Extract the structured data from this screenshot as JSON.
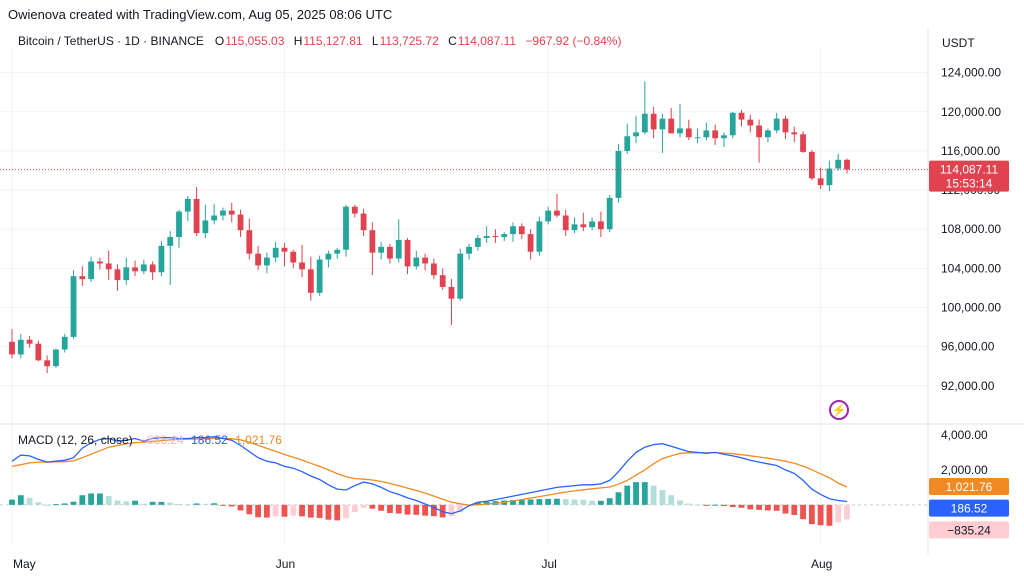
{
  "header": {
    "credit": "Owienova created with TradingView.com, Aug 05, 2025 08:06 UTC",
    "symbol": "Bitcoin / TetherUS · 1D · BINANCE",
    "ohlc": {
      "o_label": "O",
      "o": "115,055.03",
      "h_label": "H",
      "h": "115,127.81",
      "l_label": "L",
      "l": "113,725.72",
      "c_label": "C",
      "c": "114,087.11",
      "change": "−967.92 (−0.84%)"
    },
    "currency": "USDT"
  },
  "macd_legend": {
    "label": "MACD (12, 26, close)",
    "histogram": "−835.24",
    "macd": "186.52",
    "signal": "1,021.76"
  },
  "badges": {
    "last_price": "114,087.11",
    "countdown": "15:53:14",
    "signal": "1,021.76",
    "macd": "186.52",
    "histogram": "−835.24"
  },
  "colors": {
    "up": "#26a69a",
    "down": "#e0434f",
    "macd": "#2962ff",
    "signal": "#f08a24",
    "hist_up": "#26a69a",
    "hist_down": "#ef5350"
  },
  "chart_data": {
    "type": "candlestick",
    "y_ticks": [
      "92,000.00",
      "96,000.00",
      "100,000.00",
      "104,000.00",
      "108,000.00",
      "112,000.00",
      "116,000.00",
      "120,000.00",
      "124,000.00"
    ],
    "y_range": [
      88500,
      125500
    ],
    "x_labels": [
      "May",
      "Jun",
      "Jul",
      "Aug"
    ],
    "last_price": 114087.11,
    "candles": [
      [
        96500,
        97800,
        94800,
        95200
      ],
      [
        95200,
        97300,
        94800,
        96700
      ],
      [
        96700,
        97100,
        95900,
        96300
      ],
      [
        96300,
        96600,
        94500,
        94600
      ],
      [
        94600,
        95100,
        93300,
        94000
      ],
      [
        94000,
        95800,
        93800,
        95700
      ],
      [
        95700,
        97300,
        95400,
        97000
      ],
      [
        97000,
        103800,
        96800,
        103200
      ],
      [
        103200,
        104200,
        102200,
        102900
      ],
      [
        102900,
        105200,
        102600,
        104700
      ],
      [
        104700,
        105100,
        103900,
        104500
      ],
      [
        104500,
        105800,
        102800,
        103900
      ],
      [
        103900,
        104400,
        101700,
        102800
      ],
      [
        102800,
        105100,
        102300,
        104100
      ],
      [
        104100,
        104800,
        103200,
        103700
      ],
      [
        103700,
        104900,
        103400,
        104400
      ],
      [
        104400,
        104700,
        102800,
        103600
      ],
      [
        103600,
        106800,
        103200,
        106300
      ],
      [
        106300,
        107800,
        102300,
        107200
      ],
      [
        107200,
        110000,
        106100,
        109800
      ],
      [
        109800,
        111400,
        108800,
        111100
      ],
      [
        111100,
        112300,
        107300,
        107600
      ],
      [
        107600,
        110500,
        107100,
        108900
      ],
      [
        108900,
        110600,
        108500,
        109400
      ],
      [
        109400,
        110200,
        108900,
        109900
      ],
      [
        109900,
        110700,
        108700,
        109500
      ],
      [
        109500,
        110000,
        107200,
        107900
      ],
      [
        107900,
        109100,
        104900,
        105500
      ],
      [
        105500,
        106300,
        103800,
        104300
      ],
      [
        104300,
        105600,
        103500,
        105100
      ],
      [
        105100,
        106700,
        104600,
        106100
      ],
      [
        106100,
        106600,
        104200,
        105700
      ],
      [
        105700,
        105900,
        104000,
        104600
      ],
      [
        104600,
        106400,
        103100,
        103900
      ],
      [
        103900,
        105200,
        100700,
        101500
      ],
      [
        101500,
        105300,
        101200,
        104900
      ],
      [
        104900,
        105800,
        104100,
        105500
      ],
      [
        105500,
        106100,
        105000,
        105900
      ],
      [
        105900,
        110500,
        105200,
        110300
      ],
      [
        110300,
        110500,
        109200,
        109600
      ],
      [
        109600,
        110100,
        107300,
        107900
      ],
      [
        107900,
        108700,
        103300,
        105600
      ],
      [
        105600,
        106700,
        104900,
        106200
      ],
      [
        106200,
        106500,
        104500,
        105000
      ],
      [
        105000,
        109000,
        104600,
        106900
      ],
      [
        106900,
        107100,
        103400,
        104200
      ],
      [
        104200,
        105800,
        103900,
        105100
      ],
      [
        105100,
        105500,
        103800,
        104500
      ],
      [
        104500,
        105000,
        102900,
        103300
      ],
      [
        103300,
        104000,
        101800,
        102100
      ],
      [
        102100,
        102900,
        98200,
        100900
      ],
      [
        100900,
        106000,
        100700,
        105500
      ],
      [
        105500,
        106500,
        104900,
        106200
      ],
      [
        106200,
        107400,
        105800,
        107100
      ],
      [
        107100,
        108300,
        106600,
        107300
      ],
      [
        107300,
        108000,
        106600,
        107200
      ],
      [
        107200,
        107700,
        106800,
        107500
      ],
      [
        107500,
        108700,
        106700,
        108300
      ],
      [
        108300,
        108600,
        107000,
        107500
      ],
      [
        107500,
        108000,
        104900,
        105700
      ],
      [
        105700,
        109300,
        105300,
        108800
      ],
      [
        108800,
        110300,
        108500,
        109900
      ],
      [
        109900,
        111600,
        109200,
        109400
      ],
      [
        109400,
        110000,
        107300,
        107900
      ],
      [
        107900,
        109200,
        107600,
        108500
      ],
      [
        108500,
        109700,
        107800,
        108200
      ],
      [
        108200,
        109200,
        107900,
        108800
      ],
      [
        108800,
        109800,
        107200,
        108000
      ],
      [
        108000,
        111500,
        107700,
        111200
      ],
      [
        111200,
        116700,
        110700,
        116000
      ],
      [
        116000,
        118800,
        115700,
        117500
      ],
      [
        117500,
        119600,
        116800,
        117900
      ],
      [
        117900,
        123100,
        117700,
        119800
      ],
      [
        119800,
        120500,
        117300,
        118200
      ],
      [
        118200,
        119800,
        115800,
        119300
      ],
      [
        119300,
        120400,
        117800,
        117800
      ],
      [
        117800,
        120800,
        117400,
        118300
      ],
      [
        118300,
        119200,
        117100,
        117400
      ],
      [
        117400,
        118300,
        116800,
        117400
      ],
      [
        117400,
        118900,
        117100,
        118100
      ],
      [
        118100,
        118700,
        116600,
        117300
      ],
      [
        117300,
        117900,
        116400,
        117600
      ],
      [
        117600,
        120000,
        117300,
        119900
      ],
      [
        119900,
        120200,
        118500,
        119200
      ],
      [
        119200,
        119700,
        117900,
        118600
      ],
      [
        118600,
        119200,
        114800,
        117400
      ],
      [
        117400,
        118300,
        116900,
        118100
      ],
      [
        118100,
        119900,
        117800,
        119300
      ],
      [
        119300,
        119600,
        117200,
        117900
      ],
      [
        117900,
        118500,
        116900,
        117700
      ],
      [
        117700,
        118000,
        115800,
        115900
      ],
      [
        115900,
        116100,
        113000,
        113200
      ],
      [
        113200,
        114300,
        112100,
        112500
      ],
      [
        112500,
        115000,
        111900,
        114200
      ],
      [
        114200,
        115700,
        114000,
        115100
      ],
      [
        115100,
        115200,
        113700,
        114100
      ]
    ],
    "macd": {
      "y_ticks": [
        "2,000.00",
        "4,000.00"
      ],
      "y_range": [
        -2300,
        4400
      ],
      "macd_line": [
        2500,
        2850,
        2800,
        2600,
        2450,
        2500,
        2550,
        2700,
        3250,
        3550,
        3750,
        3800,
        3650,
        3700,
        3800,
        3650,
        3800,
        3850,
        3850,
        3800,
        3800,
        3850,
        3850,
        3900,
        3800,
        3700,
        3400,
        3050,
        2700,
        2500,
        2400,
        2200,
        2100,
        1900,
        1650,
        1450,
        1150,
        900,
        850,
        1100,
        1300,
        1200,
        1000,
        750,
        600,
        400,
        250,
        50,
        -150,
        -400,
        -500,
        -350,
        -50,
        150,
        200,
        300,
        400,
        500,
        600,
        700,
        800,
        900,
        1000,
        1050,
        1100,
        1150,
        1150,
        1200,
        1400,
        1900,
        2500,
        3000,
        3300,
        3450,
        3500,
        3350,
        3200,
        3050,
        3000,
        2950,
        3000,
        2900,
        2800,
        2700,
        2550,
        2450,
        2350,
        2250,
        2000,
        1800,
        1400,
        900,
        600,
        350,
        250,
        190
      ],
      "signal_line": [
        2200,
        2300,
        2400,
        2450,
        2450,
        2460,
        2470,
        2520,
        2700,
        2900,
        3100,
        3300,
        3400,
        3500,
        3560,
        3590,
        3630,
        3680,
        3720,
        3750,
        3760,
        3770,
        3790,
        3810,
        3810,
        3790,
        3720,
        3590,
        3410,
        3230,
        3060,
        2880,
        2720,
        2560,
        2380,
        2200,
        2000,
        1790,
        1610,
        1510,
        1470,
        1420,
        1340,
        1220,
        1100,
        960,
        820,
        670,
        500,
        320,
        150,
        60,
        -20,
        0,
        40,
        90,
        150,
        220,
        300,
        390,
        470,
        560,
        650,
        730,
        800,
        860,
        920,
        970,
        1020,
        1180,
        1400,
        1700,
        2000,
        2350,
        2650,
        2800,
        2950,
        2980,
        2980,
        2980,
        2990,
        2970,
        2930,
        2870,
        2810,
        2740,
        2670,
        2590,
        2500,
        2380,
        2220,
        2010,
        1770,
        1550,
        1250,
        1021
      ],
      "histogram": [
        300,
        550,
        400,
        150,
        0,
        40,
        80,
        180,
        550,
        650,
        650,
        500,
        250,
        200,
        240,
        60,
        170,
        170,
        130,
        50,
        40,
        80,
        60,
        90,
        -10,
        -90,
        -320,
        -540,
        -710,
        -730,
        -660,
        -680,
        -620,
        -660,
        -730,
        -750,
        -850,
        -890,
        -760,
        -410,
        -170,
        -220,
        -340,
        -470,
        -500,
        -560,
        -570,
        -620,
        -650,
        -720,
        -650,
        -410,
        -30,
        150,
        160,
        210,
        250,
        280,
        300,
        310,
        330,
        340,
        350,
        320,
        300,
        290,
        230,
        230,
        380,
        720,
        1100,
        1300,
        1300,
        1100,
        850,
        550,
        250,
        70,
        20,
        -30,
        10,
        -70,
        -130,
        -170,
        -260,
        -290,
        -320,
        -340,
        -500,
        -580,
        -820,
        -1110,
        -1170,
        -1200,
        -1000,
        -835
      ]
    }
  }
}
